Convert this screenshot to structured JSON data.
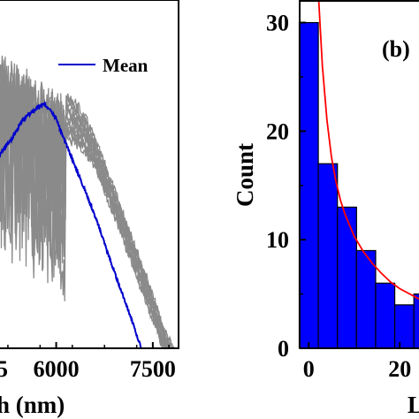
{
  "chart_data": [
    {
      "type": "line",
      "panel": "left (cropped)",
      "xlabel_visible": "h (nm)",
      "x_ticks": [
        6000,
        7500
      ],
      "x_tick_labels": [
        "6000",
        "7500"
      ],
      "partial_tick_label": "5",
      "xlim": [
        5100,
        7900
      ],
      "series": [
        {
          "name": "Mean",
          "color": "#0000cc",
          "x": [
            5100,
            5300,
            5500,
            5700,
            5800,
            5900,
            6000,
            6100,
            6300,
            6500,
            6700,
            6900,
            7100,
            7320
          ],
          "y": [
            0.55,
            0.6,
            0.66,
            0.69,
            0.7,
            0.69,
            0.66,
            0.61,
            0.52,
            0.43,
            0.33,
            0.22,
            0.12,
            0.0
          ]
        },
        {
          "name": "",
          "color": "#808080",
          "x": [
            5100,
            5400,
            5700,
            5900,
            6100,
            6200,
            6300,
            6500,
            6800,
            7100,
            7400,
            7650,
            7850
          ],
          "y": [
            0.86,
            0.84,
            0.8,
            0.77,
            0.74,
            0.73,
            0.72,
            0.66,
            0.52,
            0.37,
            0.22,
            0.08,
            0.0
          ]
        }
      ]
    },
    {
      "type": "bar",
      "panel": "right (cropped)",
      "panel_label": "(b)",
      "ylabel": "Count",
      "xlabel_visible": "L",
      "x_tick_labels": [
        "0",
        "20"
      ],
      "x_ticks": [
        0,
        20
      ],
      "y_ticks": [
        0,
        10,
        20,
        30
      ],
      "y_tick_labels": [
        "0",
        "10",
        "20",
        "30"
      ],
      "ylim": [
        0,
        32
      ],
      "xlim": [
        -2,
        32
      ],
      "bin_width": 4.2,
      "bin_centers": [
        0,
        4.2,
        8.4,
        12.6,
        16.8,
        21,
        25.2
      ],
      "values": [
        30,
        17,
        13,
        9,
        6,
        4,
        5
      ],
      "bar_color": "#0000ff",
      "fit_curve": {
        "color": "#ff0000",
        "x": [
          2.2,
          3,
          4,
          5,
          6,
          7,
          8,
          10,
          12,
          14,
          16,
          18,
          20,
          24,
          28,
          32
        ],
        "y": [
          32,
          26,
          21,
          17.6,
          15.3,
          13.6,
          12.3,
          10.3,
          8.9,
          7.8,
          6.9,
          6.1,
          5.5,
          4.6,
          3.9,
          3.4
        ]
      }
    }
  ]
}
